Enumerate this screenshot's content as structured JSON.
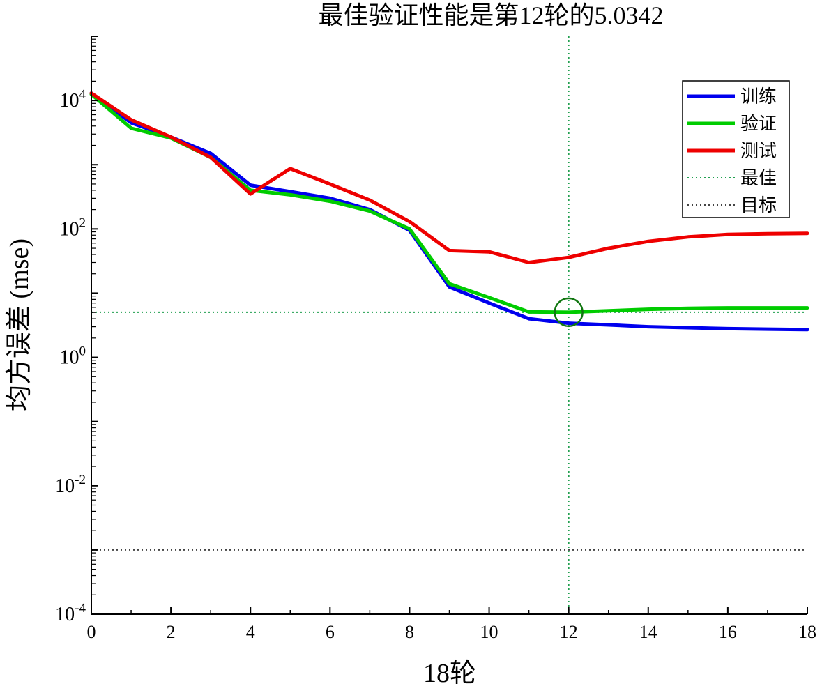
{
  "chart_data": {
    "type": "line",
    "title": "最佳验证性能是第12轮的5.0342",
    "xlabel": "18轮",
    "ylabel": "均方误差 (mse)",
    "yscale": "log",
    "xlim": [
      0,
      18
    ],
    "ylim": [
      0.0001,
      100000
    ],
    "x_ticks": [
      0,
      2,
      4,
      6,
      8,
      10,
      12,
      14,
      16,
      18
    ],
    "y_ticks": [
      {
        "value": 0.0001,
        "base": "10",
        "exp": "-4"
      },
      {
        "value": 0.01,
        "base": "10",
        "exp": "-2"
      },
      {
        "value": 1,
        "base": "10",
        "exp": "0"
      },
      {
        "value": 100,
        "base": "10",
        "exp": "2"
      },
      {
        "value": 10000,
        "base": "10",
        "exp": "4"
      }
    ],
    "legend_position": "top-right",
    "series": [
      {
        "name": "训练",
        "color": "#0000ee",
        "style": "solid",
        "x": [
          0,
          1,
          2,
          3,
          4,
          5,
          6,
          7,
          8,
          9,
          10,
          11,
          12,
          13,
          14,
          15,
          16,
          17,
          18
        ],
        "y": [
          13000,
          4500,
          2700,
          1500,
          480,
          380,
          300,
          200,
          95,
          12.5,
          7,
          4,
          3.4,
          3.2,
          3.0,
          2.9,
          2.8,
          2.75,
          2.7
        ]
      },
      {
        "name": "验证",
        "color": "#00cc00",
        "style": "solid",
        "x": [
          0,
          1,
          2,
          3,
          4,
          5,
          6,
          7,
          8,
          9,
          10,
          11,
          12,
          13,
          14,
          15,
          16,
          17,
          18
        ],
        "y": [
          12500,
          3700,
          2600,
          1300,
          400,
          340,
          270,
          190,
          100,
          14,
          8.5,
          5.1,
          5.03,
          5.3,
          5.6,
          5.8,
          5.9,
          5.9,
          5.9
        ]
      },
      {
        "name": "测试",
        "color": "#ee0000",
        "style": "solid",
        "x": [
          0,
          1,
          2,
          3,
          4,
          5,
          6,
          7,
          8,
          9,
          10,
          11,
          12,
          13,
          14,
          15,
          16,
          17,
          18
        ],
        "y": [
          13000,
          5000,
          2700,
          1300,
          350,
          870,
          500,
          280,
          130,
          46,
          44,
          30,
          36,
          50,
          64,
          75,
          82,
          84,
          85
        ]
      },
      {
        "name": "最佳",
        "color": "#22a050",
        "style": "dotted",
        "best_epoch": 12,
        "best_value": 5.0342
      },
      {
        "name": "目标",
        "color": "#444444",
        "style": "dotted",
        "goal_value": 0.001
      }
    ]
  }
}
